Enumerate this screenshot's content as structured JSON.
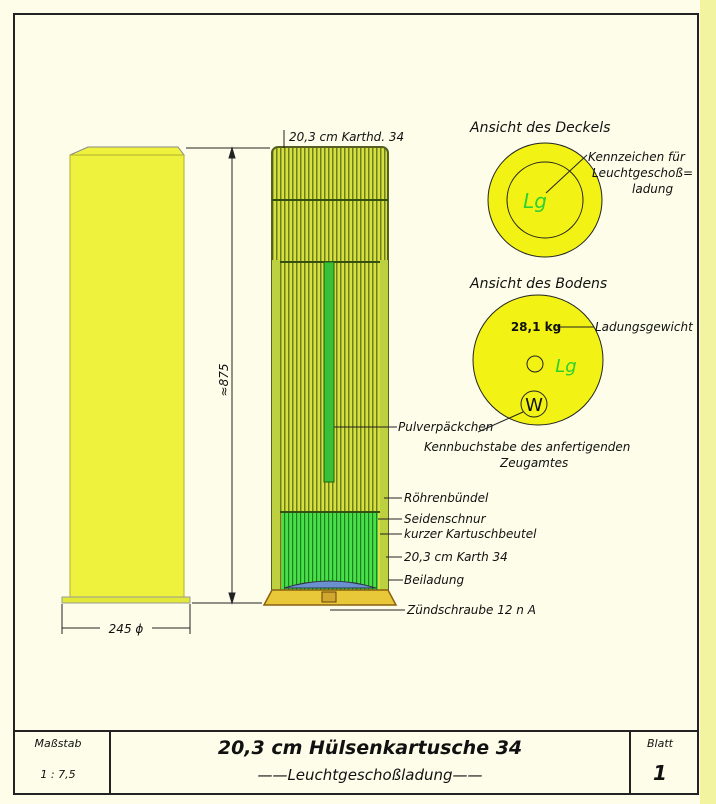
{
  "drawing": {
    "cartridge_label": "20,3 cm Karthd. 34",
    "height_dim": "≈875",
    "width_dim": "245 ϕ",
    "callouts": {
      "pulverpaeckchen": "Pulverpäckchen",
      "roehrenbuendel": "Röhrenbündel",
      "seidenschnur": "Seidenschnur",
      "kartuschbeutel": "kurzer Kartuschbeutel",
      "karth": "20,3 cm Karth 34",
      "beiladung": "Beiladung",
      "zuendschraube": "Zündschraube 12 n A"
    }
  },
  "lid_view": {
    "title": "Ansicht des Deckels",
    "mark": "Lg",
    "note_line1": "Kennzeichen für",
    "note_line2": "Leuchtgeschoß=",
    "note_line3": "ladung"
  },
  "base_view": {
    "title": "Ansicht des Bodens",
    "weight": "28,1 kg",
    "weight_label": "Ladungsgewicht",
    "mark": "Lg",
    "maker_letter": "W",
    "maker_note_line1": "Kennbuchstabe des anfertigenden",
    "maker_note_line2": "Zeugamtes"
  },
  "title_block": {
    "scale_label": "Maßstab",
    "scale_value": "1 : 7,5",
    "title": "20,3 cm Hülsenkartusche 34",
    "subtitle": "——Leuchtgeschoßladung——",
    "sheet_label": "Blatt",
    "sheet_value": "1"
  },
  "colors": {
    "yellow": "#eef23c",
    "green": "#3ad83a",
    "olive": "#9aa830",
    "line": "#1a1a1a"
  }
}
